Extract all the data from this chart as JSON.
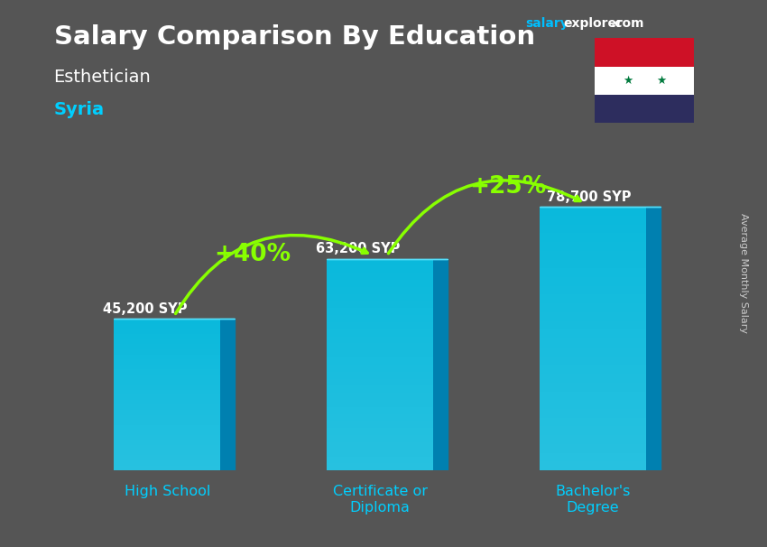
{
  "title_main": "Salary Comparison By Education",
  "subtitle": "Esthetician",
  "country": "Syria",
  "categories": [
    "High School",
    "Certificate or\nDiploma",
    "Bachelor's\nDegree"
  ],
  "values": [
    45200,
    63200,
    78700
  ],
  "labels": [
    "45,200 SYP",
    "63,200 SYP",
    "78,700 SYP"
  ],
  "bar_color_front": "#00c8f0",
  "bar_color_side": "#0080b0",
  "bar_color_top": "#55ddf8",
  "pct_labels": [
    "+40%",
    "+25%"
  ],
  "pct_color": "#88ff00",
  "arrow_color": "#88ff00",
  "title_color": "#ffffff",
  "subtitle_color": "#ffffff",
  "country_color": "#00cfff",
  "label_color": "#ffffff",
  "xlabel_color": "#00cfff",
  "ylabel_text": "Average Monthly Salary",
  "ylabel_color": "#cccccc",
  "background_color": "#555555",
  "ylim": [
    0,
    98000
  ],
  "salary_color": "#00bfff",
  "explorer_color": "#ffffff",
  "com_color": "#ffffff"
}
